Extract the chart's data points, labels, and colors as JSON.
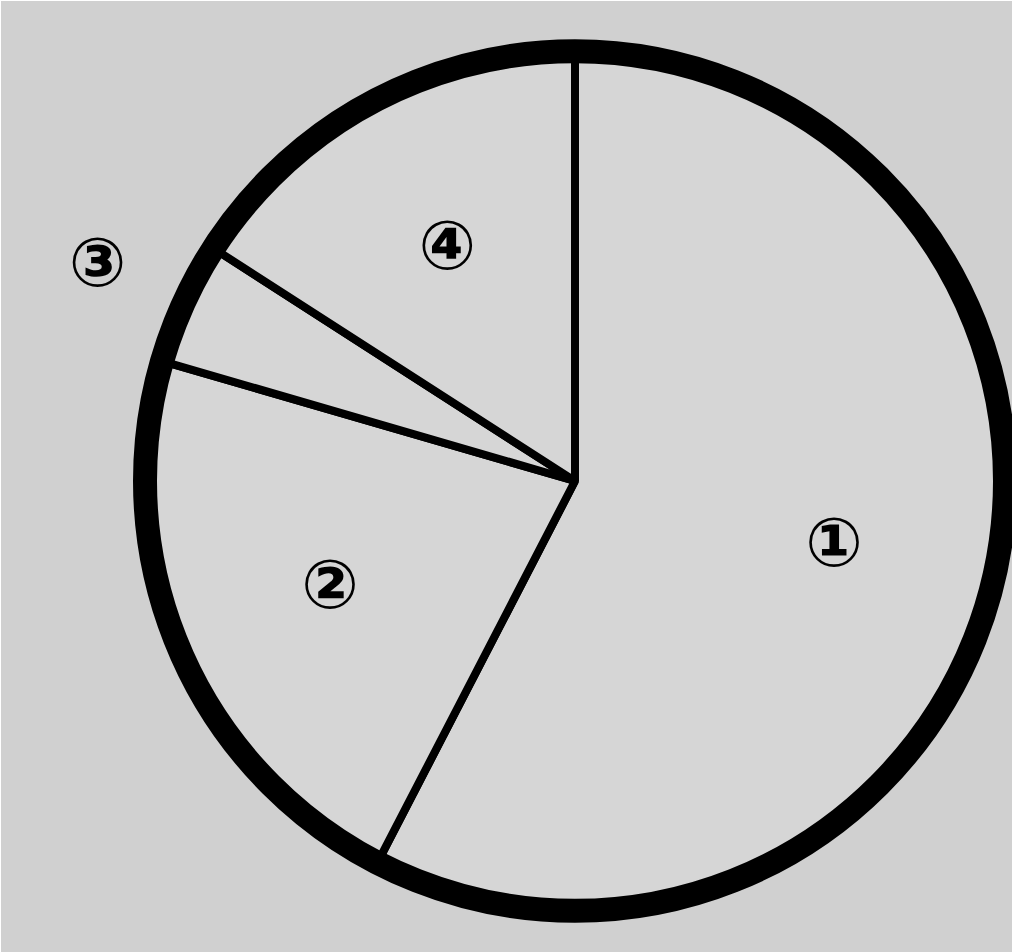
{
  "chart_data": {
    "type": "pie",
    "categories": [
      "①",
      "②",
      "③",
      "④"
    ],
    "values": [
      57.6,
      21.9,
      4.6,
      15.9
    ],
    "colors": [
      "#d6d6d6",
      "#d6d6d6",
      "#d6d6d6",
      "#d6d6d6"
    ]
  }
}
